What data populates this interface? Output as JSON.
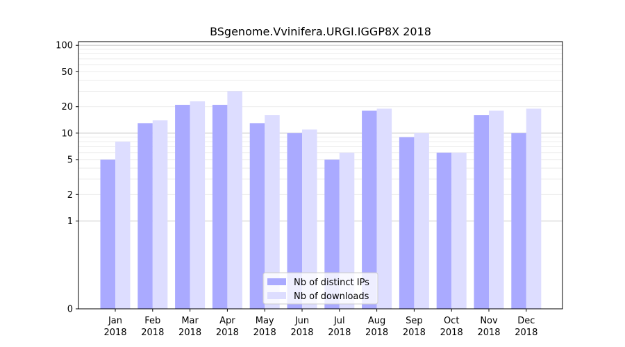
{
  "chart_data": {
    "type": "bar",
    "title": "BSgenome.Vvinifera.URGI.IGGP8X 2018",
    "xlabel": "",
    "ylabel": "",
    "categories": [
      [
        "Jan",
        "2018"
      ],
      [
        "Feb",
        "2018"
      ],
      [
        "Mar",
        "2018"
      ],
      [
        "Apr",
        "2018"
      ],
      [
        "May",
        "2018"
      ],
      [
        "Jun",
        "2018"
      ],
      [
        "Jul",
        "2018"
      ],
      [
        "Aug",
        "2018"
      ],
      [
        "Sep",
        "2018"
      ],
      [
        "Oct",
        "2018"
      ],
      [
        "Nov",
        "2018"
      ],
      [
        "Dec",
        "2018"
      ]
    ],
    "series": [
      {
        "name": "Nb of distinct IPs",
        "color": "#aaaaff",
        "values": [
          5,
          13,
          21,
          21,
          13,
          10,
          5,
          18,
          9,
          6,
          16,
          10
        ]
      },
      {
        "name": "Nb of downloads",
        "color": "#ddddff",
        "values": [
          8,
          14,
          23,
          30,
          16,
          11,
          6,
          19,
          10,
          6,
          18,
          19
        ]
      }
    ],
    "y_scale": "symlog",
    "ylim": [
      0,
      110
    ],
    "y_ticks": [
      0,
      1,
      2,
      5,
      10,
      20,
      50,
      100
    ],
    "y_tick_labels": [
      "0",
      "1",
      "2",
      "5",
      "10",
      "20",
      "50",
      "100"
    ],
    "major_gridlines": [
      1,
      10,
      100
    ],
    "minor_gridlines": [
      2,
      3,
      4,
      5,
      6,
      7,
      8,
      9,
      20,
      30,
      40,
      50,
      60,
      70,
      80,
      90
    ],
    "legend_position": "bottom-center",
    "grid": true
  }
}
